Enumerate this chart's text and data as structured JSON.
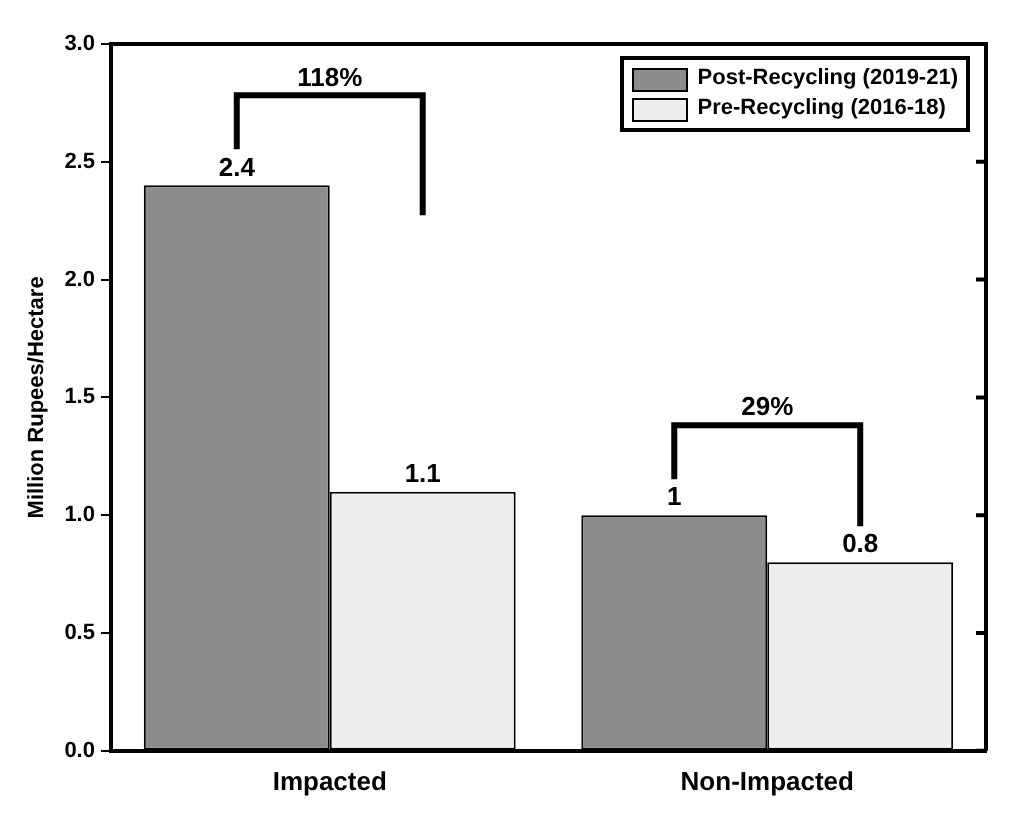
{
  "chart_data": {
    "type": "bar",
    "ylabel": "Million Rupees/Hectare",
    "categories": [
      "Impacted",
      "Non-Impacted"
    ],
    "series": [
      {
        "name": "Post-Recycling (2019-21)",
        "color": "#8c8c8c",
        "values": [
          2.4,
          1.0
        ]
      },
      {
        "name": "Pre-Recycling (2016-18)",
        "color": "#eeeeee",
        "values": [
          1.1,
          0.8
        ]
      }
    ],
    "ylim": [
      0,
      3
    ],
    "yticks": [
      {
        "value": 0,
        "label": "0.0"
      },
      {
        "value": 0.5,
        "label": "0.5"
      },
      {
        "value": 1,
        "label": "1.0"
      },
      {
        "value": 1.5,
        "label": "1.5"
      },
      {
        "value": 2,
        "label": "2.0"
      },
      {
        "value": 2.5,
        "label": "2.5"
      },
      {
        "value": 3,
        "label": "3.0"
      }
    ],
    "annotations": [
      "118%",
      "29%"
    ],
    "data_labels": true,
    "legend": "top right",
    "grid": false
  }
}
